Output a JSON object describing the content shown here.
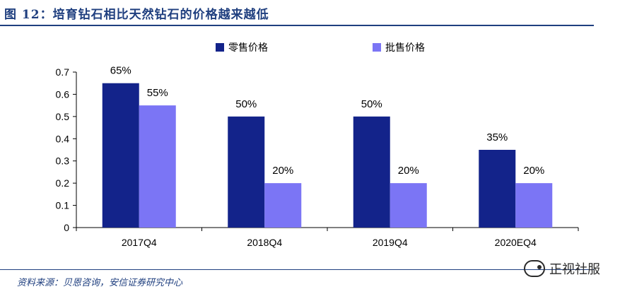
{
  "header": {
    "title": "图 12：培育钻石相比天然钻石的价格越来越低"
  },
  "footer": {
    "source": "资料来源：贝恩咨询，安信证券研究中心",
    "watermark": "正视社服"
  },
  "colors": {
    "retail": "#13238a",
    "wholesale": "#7b75f5",
    "accent": "#1f3f7f"
  },
  "chart_data": {
    "type": "bar",
    "categories": [
      "2017Q4",
      "2018Q4",
      "2019Q4",
      "2020EQ4"
    ],
    "series": [
      {
        "name": "零售价格",
        "values": [
          0.65,
          0.5,
          0.5,
          0.35
        ],
        "labels": [
          "65%",
          "50%",
          "50%",
          "35%"
        ]
      },
      {
        "name": "批售价格",
        "values": [
          0.55,
          0.2,
          0.2,
          0.2
        ],
        "labels": [
          "55%",
          "20%",
          "20%",
          "20%"
        ]
      }
    ],
    "ylim": [
      0,
      0.7
    ],
    "yticks": [
      "0",
      "0.1",
      "0.2",
      "0.3",
      "0.4",
      "0.5",
      "0.6",
      "0.7"
    ],
    "legend": "top",
    "grid": false
  }
}
